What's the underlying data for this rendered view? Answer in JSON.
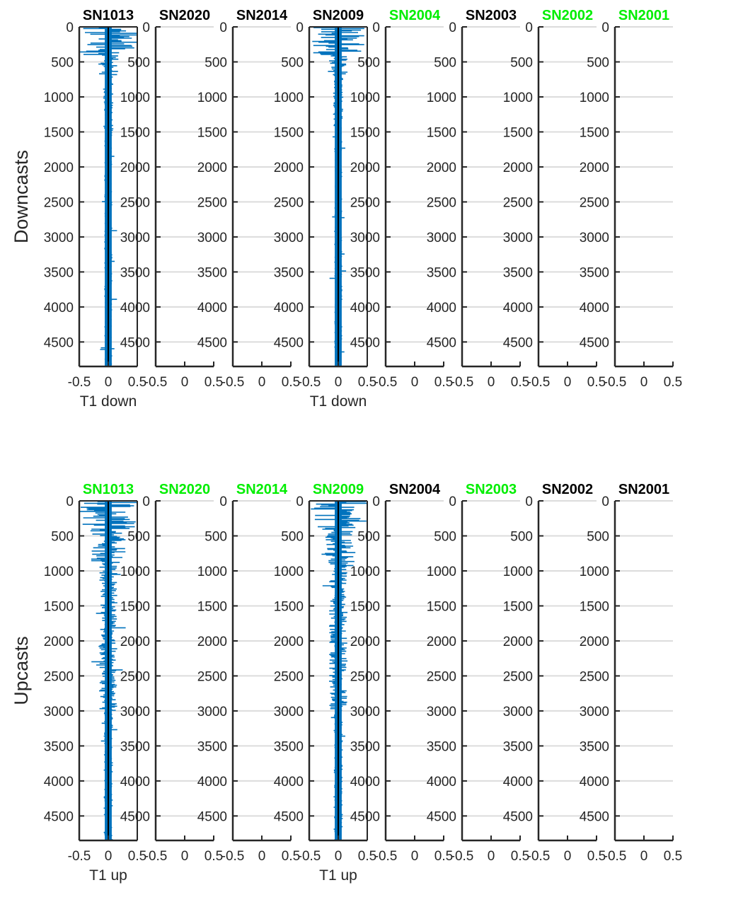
{
  "colors": {
    "series": "#0072bd",
    "axis": "#262626",
    "grid": "#dcdcdc",
    "title_normal": "#000000",
    "title_highlight": "#00ee00",
    "zero_line": "#000000"
  },
  "chart_data": [
    {
      "type": "line",
      "row_label": "Downcasts",
      "xlim": [
        -0.5,
        0.5
      ],
      "ylim": [
        0,
        4850
      ],
      "y_reversed": true,
      "xticks": [
        "-0.5",
        "0",
        "0.5"
      ],
      "yticks": [
        0,
        500,
        1000,
        1500,
        2000,
        2500,
        3000,
        3500,
        4000,
        4500
      ],
      "grid": true,
      "panels": [
        {
          "title": "SN1013",
          "highlight": false,
          "xlabel": "T1 down",
          "has_data": true
        },
        {
          "title": "SN2020",
          "highlight": false,
          "xlabel": "",
          "has_data": false
        },
        {
          "title": "SN2014",
          "highlight": false,
          "xlabel": "",
          "has_data": false
        },
        {
          "title": "SN2009",
          "highlight": false,
          "xlabel": "T1 down",
          "has_data": true
        },
        {
          "title": "SN2004",
          "highlight": true,
          "xlabel": "",
          "has_data": false
        },
        {
          "title": "SN2003",
          "highlight": false,
          "xlabel": "",
          "has_data": false
        },
        {
          "title": "SN2002",
          "highlight": true,
          "xlabel": "",
          "has_data": false
        },
        {
          "title": "SN2001",
          "highlight": true,
          "xlabel": "",
          "has_data": false
        }
      ]
    },
    {
      "type": "line",
      "row_label": "Upcasts",
      "xlim": [
        -0.5,
        0.5
      ],
      "ylim": [
        0,
        4850
      ],
      "y_reversed": true,
      "xticks": [
        "-0.5",
        "0",
        "0.5"
      ],
      "yticks": [
        0,
        500,
        1000,
        1500,
        2000,
        2500,
        3000,
        3500,
        4000,
        4500
      ],
      "grid": true,
      "panels": [
        {
          "title": "SN1013",
          "highlight": true,
          "xlabel": "T1 up",
          "has_data": true
        },
        {
          "title": "SN2020",
          "highlight": true,
          "xlabel": "",
          "has_data": false
        },
        {
          "title": "SN2014",
          "highlight": true,
          "xlabel": "",
          "has_data": false
        },
        {
          "title": "SN2009",
          "highlight": true,
          "xlabel": "T1 up",
          "has_data": true
        },
        {
          "title": "SN2004",
          "highlight": false,
          "xlabel": "",
          "has_data": false
        },
        {
          "title": "SN2003",
          "highlight": true,
          "xlabel": "",
          "has_data": false
        },
        {
          "title": "SN2002",
          "highlight": false,
          "xlabel": "",
          "has_data": false
        },
        {
          "title": "SN2001",
          "highlight": false,
          "xlabel": "",
          "has_data": false
        }
      ]
    }
  ]
}
